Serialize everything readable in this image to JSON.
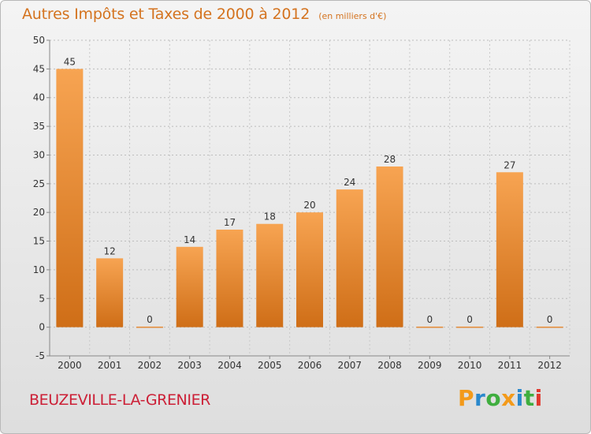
{
  "header": {
    "title": "Autres Impôts et Taxes de 2000 à 2012",
    "unit": "(en milliers d'€)"
  },
  "footer": {
    "commune": "BEUZEVILLE-LA-GRENIER",
    "brand": "Proxiti"
  },
  "colors": {
    "title": "#d4731f",
    "commune": "#cc1f36",
    "bar_light": "#f7a452",
    "bar_dark": "#cf6e17",
    "brand_letters": [
      "#f39a1a",
      "#2a88cc",
      "#3fae3f",
      "#f39a1a",
      "#2a88cc",
      "#3fae3f",
      "#e0392e"
    ]
  },
  "chart_data": {
    "type": "bar",
    "categories": [
      "2000",
      "2001",
      "2002",
      "2003",
      "2004",
      "2005",
      "2006",
      "2007",
      "2008",
      "2009",
      "2010",
      "2011",
      "2012"
    ],
    "values": [
      45,
      12,
      0,
      14,
      17,
      18,
      20,
      24,
      28,
      0,
      0,
      27,
      0
    ],
    "ylim": [
      -5,
      50
    ],
    "yticks": [
      -5,
      0,
      5,
      10,
      15,
      20,
      25,
      30,
      35,
      40,
      45,
      50
    ],
    "grid": "horizontal dashed",
    "value_labels": true
  }
}
